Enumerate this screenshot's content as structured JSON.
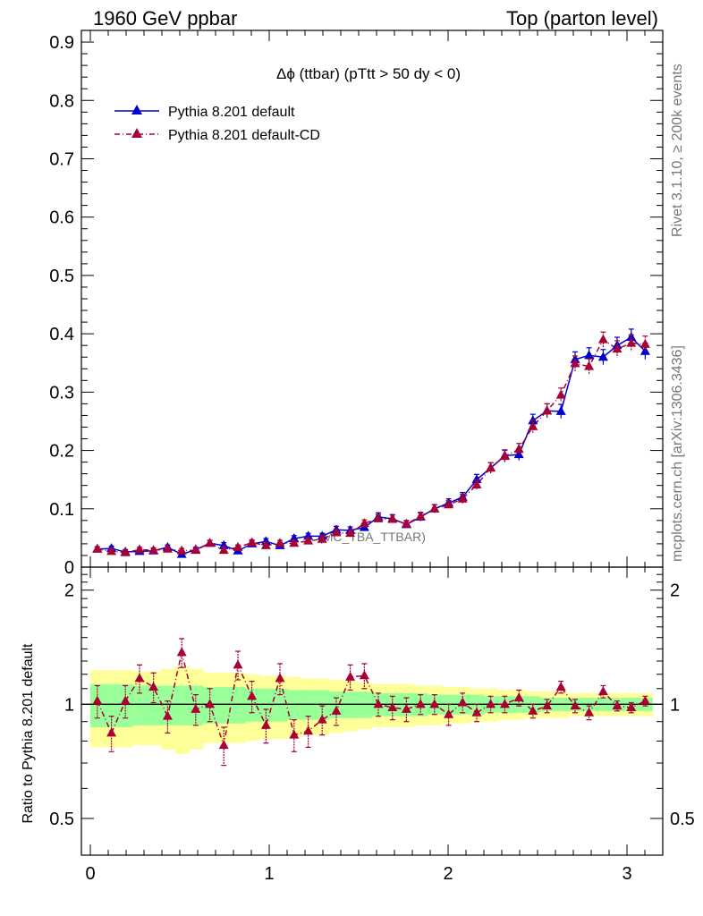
{
  "header": {
    "left": "1960 GeV ppbar",
    "right": "Top (parton level)"
  },
  "side_labels": {
    "rivet": "Rivet 3.1.10, ≥ 200k events",
    "mcplots": "mcplots.cern.ch [arXiv:1306.3436]"
  },
  "watermark": "(MC_TBA_TTBAR)",
  "colors": {
    "series_default": "#0000cc",
    "series_cd": "#aa0033",
    "band_inner": "#99ff99",
    "band_outer": "#ffff99"
  },
  "chart_data": [
    {
      "type": "line",
      "title": "Δϕ (ttbar) (pTtt > 50 dy < 0)",
      "xlabel": "",
      "ylabel": "",
      "xlim": [
        -0.05,
        3.2
      ],
      "ylim": [
        0,
        0.92
      ],
      "yticks": [
        0,
        0.1,
        0.2,
        0.3,
        0.4,
        0.5,
        0.6,
        0.7,
        0.8,
        0.9
      ],
      "xticks": [
        0,
        1,
        2,
        3
      ],
      "legend_position": "top-left",
      "x": [
        0.039,
        0.118,
        0.196,
        0.275,
        0.353,
        0.432,
        0.511,
        0.589,
        0.668,
        0.746,
        0.825,
        0.903,
        0.982,
        1.06,
        1.139,
        1.218,
        1.296,
        1.375,
        1.453,
        1.532,
        1.61,
        1.689,
        1.767,
        1.846,
        1.924,
        2.003,
        2.081,
        2.16,
        2.238,
        2.317,
        2.396,
        2.474,
        2.553,
        2.631,
        2.71,
        2.788,
        2.867,
        2.945,
        3.024,
        3.102
      ],
      "series": [
        {
          "name": "Pythia 8.201 default",
          "marker": "triangle-up",
          "values": [
            0.031,
            0.032,
            0.026,
            0.027,
            0.028,
            0.034,
            0.022,
            0.03,
            0.041,
            0.037,
            0.028,
            0.04,
            0.044,
            0.037,
            0.049,
            0.053,
            0.053,
            0.064,
            0.063,
            0.068,
            0.086,
            0.083,
            0.073,
            0.086,
            0.1,
            0.11,
            0.12,
            0.15,
            0.17,
            0.191,
            0.193,
            0.251,
            0.268,
            0.267,
            0.356,
            0.363,
            0.36,
            0.38,
            0.394,
            0.37
          ],
          "errors": [
            0.004,
            0.004,
            0.004,
            0.004,
            0.004,
            0.004,
            0.004,
            0.004,
            0.005,
            0.005,
            0.004,
            0.005,
            0.005,
            0.005,
            0.005,
            0.005,
            0.005,
            0.006,
            0.006,
            0.006,
            0.007,
            0.007,
            0.006,
            0.007,
            0.007,
            0.007,
            0.008,
            0.009,
            0.009,
            0.01,
            0.01,
            0.011,
            0.012,
            0.012,
            0.013,
            0.013,
            0.013,
            0.014,
            0.014,
            0.014
          ]
        },
        {
          "name": "Pythia 8.201 default-CD",
          "marker": "triangle-up",
          "values": [
            0.031,
            0.027,
            0.025,
            0.03,
            0.029,
            0.031,
            0.028,
            0.029,
            0.041,
            0.029,
            0.034,
            0.042,
            0.037,
            0.041,
            0.041,
            0.045,
            0.048,
            0.059,
            0.058,
            0.075,
            0.083,
            0.082,
            0.074,
            0.087,
            0.1,
            0.107,
            0.117,
            0.141,
            0.17,
            0.19,
            0.202,
            0.241,
            0.268,
            0.295,
            0.349,
            0.344,
            0.39,
            0.374,
            0.384,
            0.382
          ]
        }
      ]
    },
    {
      "type": "line",
      "title": "",
      "xlabel": "",
      "ylabel": "Ratio to Pythia 8.201 default",
      "y_scale": "log",
      "ylim": [
        0.4,
        2.3
      ],
      "yticks": [
        0.5,
        1,
        2
      ],
      "xticks": [
        0,
        1,
        2,
        3
      ],
      "reference_line": 1,
      "band_inner_halfwidth": [
        0.13,
        0.13,
        0.13,
        0.12,
        0.12,
        0.12,
        0.12,
        0.12,
        0.11,
        0.11,
        0.11,
        0.1,
        0.1,
        0.1,
        0.09,
        0.09,
        0.09,
        0.08,
        0.08,
        0.08,
        0.07,
        0.07,
        0.07,
        0.07,
        0.06,
        0.06,
        0.06,
        0.06,
        0.05,
        0.05,
        0.05,
        0.05,
        0.04,
        0.04,
        0.04,
        0.04,
        0.04,
        0.04,
        0.04,
        0.04
      ],
      "band_outer_halfwidth": [
        0.23,
        0.23,
        0.23,
        0.22,
        0.22,
        0.24,
        0.26,
        0.24,
        0.21,
        0.21,
        0.21,
        0.2,
        0.19,
        0.19,
        0.18,
        0.17,
        0.17,
        0.16,
        0.15,
        0.14,
        0.13,
        0.13,
        0.13,
        0.12,
        0.12,
        0.11,
        0.11,
        0.1,
        0.1,
        0.09,
        0.09,
        0.08,
        0.08,
        0.08,
        0.07,
        0.07,
        0.07,
        0.07,
        0.07,
        0.07
      ],
      "series": [
        {
          "name": "Pythia 8.201 default-CD",
          "values": [
            1.02,
            0.84,
            1.02,
            1.17,
            1.11,
            0.93,
            1.37,
            0.97,
            1.0,
            0.78,
            1.27,
            1.05,
            0.88,
            1.17,
            0.83,
            0.85,
            0.91,
            0.96,
            1.18,
            1.19,
            1.0,
            0.98,
            0.97,
            1.0,
            1.0,
            0.94,
            1.01,
            0.95,
            1.0,
            1.0,
            1.04,
            0.96,
            0.99,
            1.11,
            0.99,
            0.95,
            1.08,
            0.99,
            0.98,
            1.02
          ],
          "errors": [
            0.1,
            0.09,
            0.1,
            0.1,
            0.1,
            0.09,
            0.12,
            0.09,
            0.1,
            0.09,
            0.11,
            0.1,
            0.09,
            0.11,
            0.08,
            0.08,
            0.08,
            0.08,
            0.09,
            0.09,
            0.07,
            0.07,
            0.07,
            0.06,
            0.06,
            0.06,
            0.06,
            0.05,
            0.05,
            0.05,
            0.05,
            0.04,
            0.04,
            0.04,
            0.04,
            0.04,
            0.04,
            0.03,
            0.03,
            0.03
          ]
        }
      ]
    }
  ]
}
